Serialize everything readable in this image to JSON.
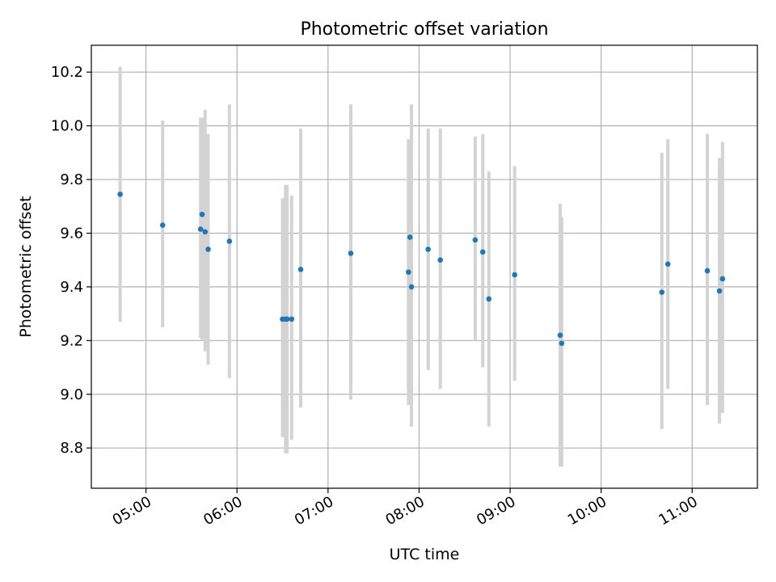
{
  "chart_data": {
    "type": "scatter",
    "title": "Photometric offset variation",
    "xlabel": "UTC time",
    "ylabel": "Photometric offset",
    "x_ticks": [
      "05:00",
      "06:00",
      "07:00",
      "08:00",
      "09:00",
      "10:00",
      "11:00"
    ],
    "y_ticks": [
      "8.8",
      "9.0",
      "9.2",
      "9.4",
      "9.6",
      "9.8",
      "10.0",
      "10.2"
    ],
    "xlim": [
      "04:24",
      "11:43"
    ],
    "ylim": [
      8.65,
      10.3
    ],
    "grid": true,
    "colors": {
      "point": "#1f77b4",
      "errorbar": "#d3d3d3",
      "grid": "#b0b0b0"
    },
    "series": [
      {
        "points": [
          {
            "x": "04:43",
            "y": 9.745,
            "lo": 9.27,
            "hi": 10.22
          },
          {
            "x": "05:11",
            "y": 9.63,
            "lo": 9.25,
            "hi": 10.02
          },
          {
            "x": "05:36",
            "y": 9.615,
            "lo": 9.21,
            "hi": 10.03
          },
          {
            "x": "05:37",
            "y": 9.67,
            "lo": 9.2,
            "hi": 10.03
          },
          {
            "x": "05:39",
            "y": 9.605,
            "lo": 9.16,
            "hi": 10.06
          },
          {
            "x": "05:41",
            "y": 9.54,
            "lo": 9.11,
            "hi": 9.97
          },
          {
            "x": "05:55",
            "y": 9.57,
            "lo": 9.06,
            "hi": 10.08
          },
          {
            "x": "06:30",
            "y": 9.28,
            "lo": 8.84,
            "hi": 9.73
          },
          {
            "x": "06:32",
            "y": 9.28,
            "lo": 8.78,
            "hi": 9.78
          },
          {
            "x": "06:33",
            "y": 9.28,
            "lo": 8.78,
            "hi": 9.78
          },
          {
            "x": "06:36",
            "y": 9.28,
            "lo": 8.83,
            "hi": 9.74
          },
          {
            "x": "06:42",
            "y": 9.465,
            "lo": 8.95,
            "hi": 9.99
          },
          {
            "x": "07:15",
            "y": 9.525,
            "lo": 8.98,
            "hi": 10.08
          },
          {
            "x": "07:53",
            "y": 9.455,
            "lo": 8.96,
            "hi": 9.95
          },
          {
            "x": "07:54",
            "y": 9.585,
            "lo": 9.2,
            "hi": 9.94
          },
          {
            "x": "07:55",
            "y": 9.4,
            "lo": 8.88,
            "hi": 10.08
          },
          {
            "x": "08:06",
            "y": 9.54,
            "lo": 9.09,
            "hi": 9.99
          },
          {
            "x": "08:14",
            "y": 9.5,
            "lo": 9.02,
            "hi": 9.99
          },
          {
            "x": "08:37",
            "y": 9.575,
            "lo": 9.2,
            "hi": 9.96
          },
          {
            "x": "08:42",
            "y": 9.53,
            "lo": 9.1,
            "hi": 9.97
          },
          {
            "x": "08:46",
            "y": 9.355,
            "lo": 8.88,
            "hi": 9.83
          },
          {
            "x": "09:03",
            "y": 9.445,
            "lo": 9.05,
            "hi": 9.85
          },
          {
            "x": "09:33",
            "y": 9.22,
            "lo": 8.73,
            "hi": 9.71
          },
          {
            "x": "09:34",
            "y": 9.19,
            "lo": 8.73,
            "hi": 9.66
          },
          {
            "x": "10:40",
            "y": 9.38,
            "lo": 8.87,
            "hi": 9.9
          },
          {
            "x": "10:44",
            "y": 9.485,
            "lo": 9.02,
            "hi": 9.95
          },
          {
            "x": "11:10",
            "y": 9.46,
            "lo": 8.96,
            "hi": 9.97
          },
          {
            "x": "11:18",
            "y": 9.385,
            "lo": 8.89,
            "hi": 9.88
          },
          {
            "x": "11:20",
            "y": 9.43,
            "lo": 8.93,
            "hi": 9.94
          }
        ]
      }
    ]
  }
}
